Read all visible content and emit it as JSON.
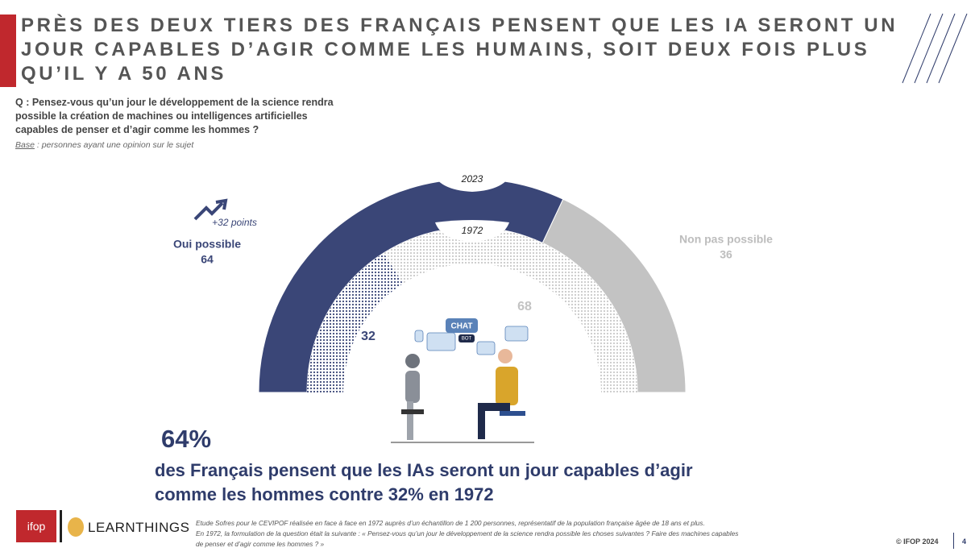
{
  "header": {
    "title": [
      "PRÈS DES DEUX TIERS DES FRANÇAIS PENSENT QUE LES IA SERONT UN",
      "JOUR CAPABLES D’AGIR COMME LES HUMAINS, SOIT DEUX FOIS PLUS",
      "QU’IL Y A 50 ANS"
    ],
    "question": [
      "Q : Pensez-vous qu’un jour le développement de la science rendra",
      "possible la création de machines ou intelligences artificielles",
      "capables de penser et d’agir comme les hommes ?"
    ],
    "base_label": "Base",
    "base_text": " : personnes ayant une opinion sur le sujet"
  },
  "chart_data": {
    "type": "semi-donut",
    "categories": [
      "Oui possible",
      "Non pas possible"
    ],
    "series": [
      {
        "name": "2023",
        "colors": [
          "#3a4677",
          "#c3c3c3"
        ],
        "values": [
          64,
          36
        ]
      },
      {
        "name": "1972",
        "colors": [
          "#3a4677",
          "#c9c9c9"
        ],
        "values": [
          32,
          68
        ]
      }
    ],
    "annotation": "+32 points"
  },
  "illustration": {
    "bubble": "CHAT",
    "badge": "BOT"
  },
  "highlight": {
    "stat": "64%",
    "text": [
      "des Français pensent que les IAs seront un jour capables d’agir",
      "comme les hommes contre 32% en 1972"
    ]
  },
  "footer": {
    "notes": [
      "Etude Sofres pour le CEVIPOF réalisée en face à face en 1972 auprès d’un échantillon de 1 200 personnes, représentatif de la population française âgée de 18 ans et plus.",
      "En 1972, la formulation de la question était la suivante : « Pensez-vous qu’un jour le développement de la science rendra possible les choses suivantes ?  Faire des machines capables",
      "de penser et d’agir comme les hommes ? »"
    ],
    "logo_ifop": "ifop",
    "logo_learnthings": "LEARNTHINGS",
    "copyright": "© IFOP 2024",
    "page": "4"
  }
}
